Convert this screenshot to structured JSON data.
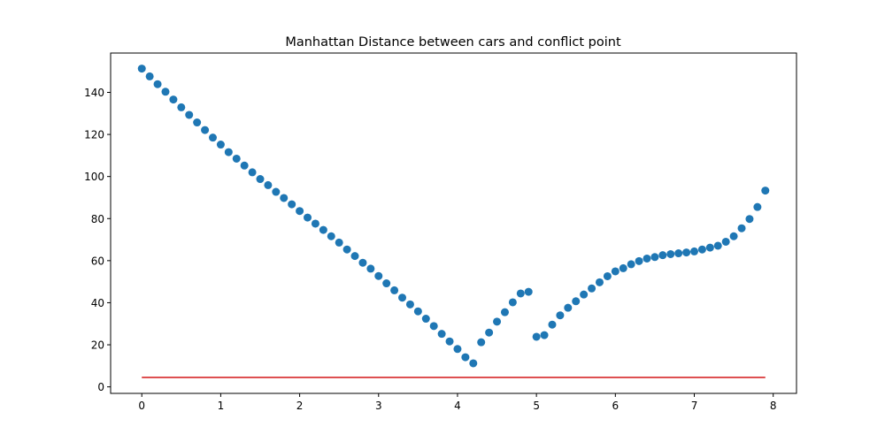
{
  "chart_data": {
    "type": "scatter",
    "title": "Manhattan Distance between cars and conflict point",
    "xlabel": "",
    "ylabel": "",
    "xlim": [
      -0.395,
      8.295
    ],
    "ylim": [
      -3.1,
      158.7
    ],
    "xticks": [
      0,
      1,
      2,
      3,
      4,
      5,
      6,
      7,
      8
    ],
    "yticks": [
      0,
      20,
      40,
      60,
      80,
      100,
      120,
      140
    ],
    "grid": false,
    "colors": {
      "points": "#1f77b4",
      "threshold": "#d62728",
      "axes": "#000000"
    },
    "series": [
      {
        "x": [
          0.0,
          0.1,
          0.2,
          0.3,
          0.4,
          0.5,
          0.6,
          0.7,
          0.8,
          0.9,
          1.0,
          1.1,
          1.2,
          1.3,
          1.4,
          1.5,
          1.6,
          1.7,
          1.8,
          1.9,
          2.0,
          2.1,
          2.2,
          2.3,
          2.4,
          2.5,
          2.6,
          2.7,
          2.8,
          2.9,
          3.0,
          3.1,
          3.2,
          3.3,
          3.4,
          3.5,
          3.6,
          3.7,
          3.8,
          3.9,
          4.0,
          4.1,
          4.2,
          4.3,
          4.4,
          4.5,
          4.6,
          4.7,
          4.8,
          4.9,
          5.0,
          5.1,
          5.2,
          5.3,
          5.4,
          5.5,
          5.6,
          5.7,
          5.8,
          5.9,
          6.0,
          6.1,
          6.2,
          6.3,
          6.4,
          6.5,
          6.6,
          6.7,
          6.8,
          6.9,
          7.0,
          7.1,
          7.2,
          7.3,
          7.4,
          7.5,
          7.6,
          7.7,
          7.8,
          7.9
        ],
        "y": [
          151.3,
          147.6,
          143.9,
          140.3,
          136.6,
          132.9,
          129.3,
          125.7,
          122.1,
          118.5,
          115.2,
          111.6,
          108.5,
          105.2,
          102.0,
          98.8,
          95.9,
          92.7,
          89.8,
          86.8,
          83.6,
          80.5,
          77.6,
          74.6,
          71.6,
          68.6,
          65.3,
          62.2,
          59.0,
          56.2,
          52.7,
          49.2,
          45.9,
          42.4,
          39.2,
          35.9,
          32.4,
          28.9,
          25.2,
          21.6,
          18.0,
          14.1,
          11.2,
          21.2,
          25.8,
          31.0,
          35.5,
          40.2,
          44.4,
          45.2,
          23.8,
          24.6,
          29.6,
          34.0,
          37.6,
          40.7,
          43.9,
          46.8,
          49.7,
          52.6,
          54.9,
          56.4,
          58.3,
          59.8,
          61.0,
          61.7,
          62.6,
          63.1,
          63.5,
          63.9,
          64.4,
          65.3,
          66.2,
          67.1,
          69.0,
          71.6,
          75.4,
          79.8,
          85.5,
          93.3
        ]
      }
    ],
    "threshold_line": {
      "x": [
        0,
        7.9
      ],
      "y": [
        4.5,
        4.5
      ]
    }
  }
}
